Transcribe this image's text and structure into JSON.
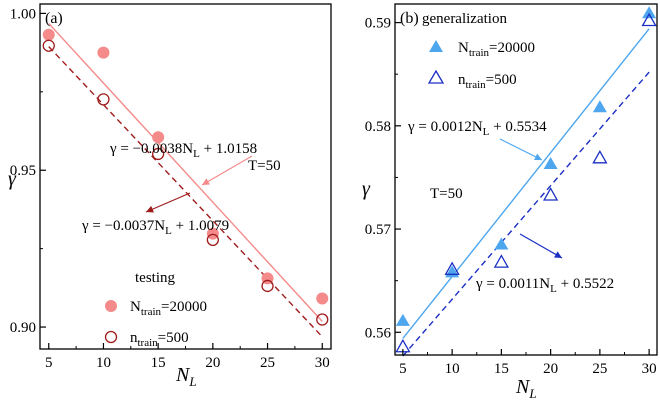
{
  "chart_data": [
    {
      "type": "scatter",
      "panel_label": "(a)",
      "xlabel": "N",
      "xlabel_sub": "L",
      "ylabel": "γ",
      "xlim": [
        4.2,
        30.8
      ],
      "ylim": [
        0.893,
        1.003
      ],
      "xticks": [
        "5",
        "10",
        "15",
        "20",
        "25",
        "30"
      ],
      "yticks": [
        "0.90",
        "0.95",
        "1.00"
      ],
      "grid": false,
      "legend_position": "bottom-left",
      "legend_title": "testing",
      "annotation_T": "T=50",
      "series": [
        {
          "name": "N",
          "name_sub": "train",
          "name_tail": "=20000",
          "marker": "filled-circle",
          "color": "#f58a8a",
          "x": [
            5,
            10,
            15,
            20,
            25,
            30
          ],
          "y": [
            0.9932,
            0.9875,
            0.9605,
            0.9298,
            0.9155,
            0.9091
          ],
          "fit": {
            "slope": -0.0038,
            "intercept": 1.0158,
            "style": "solid",
            "color": "#f58a8a",
            "label": "γ = −0.0038N",
            "label_sub": "L",
            "label_tail": " + 1.0158"
          }
        },
        {
          "name": "n",
          "name_sub": "train",
          "name_tail": "=500",
          "marker": "open-circle",
          "color": "#a01c1c",
          "x": [
            5,
            10,
            15,
            20,
            25,
            30
          ],
          "y": [
            0.9897,
            0.9726,
            0.9552,
            0.9278,
            0.9131,
            0.9024
          ],
          "fit": {
            "slope": -0.0037,
            "intercept": 1.0079,
            "style": "dashed",
            "color": "#a01c1c",
            "label": "γ = −0.0037N",
            "label_sub": "L",
            "label_tail": " + 1.0079"
          }
        }
      ]
    },
    {
      "type": "scatter",
      "panel_label": "(b)",
      "xlabel": "N",
      "xlabel_sub": "L",
      "ylabel": "γ",
      "xlim": [
        4.2,
        30.8
      ],
      "ylim": [
        0.5578,
        0.5918
      ],
      "xticks": [
        "5",
        "10",
        "15",
        "20",
        "25",
        "30"
      ],
      "yticks": [
        "0.56",
        "0.57",
        "0.58",
        "0.59"
      ],
      "grid": false,
      "legend_position": "top-left",
      "legend_title": "generalization",
      "annotation_T": "T=50",
      "series": [
        {
          "name": "N",
          "name_sub": "train",
          "name_tail": "=20000",
          "marker": "filled-triangle",
          "color": "#4da6ee",
          "x": [
            5,
            10,
            15,
            20,
            25,
            30
          ],
          "y": [
            0.5611,
            0.5658,
            0.5685,
            0.5763,
            0.5818,
            0.5909
          ],
          "fit": {
            "slope": 0.0012,
            "intercept": 0.5534,
            "style": "solid",
            "color": "#4da6ee",
            "label": "γ = 0.0012N",
            "label_sub": "L",
            "label_tail": " + 0.5534"
          }
        },
        {
          "name": "n",
          "name_sub": "train",
          "name_tail": "=500",
          "marker": "open-triangle",
          "color": "#1a2fc4",
          "x": [
            5,
            10,
            15,
            20,
            25,
            30
          ],
          "y": [
            0.5586,
            0.5661,
            0.5668,
            0.5733,
            0.5769,
            0.5902
          ],
          "fit": {
            "slope": 0.0011,
            "intercept": 0.5522,
            "style": "dashed",
            "color": "#1a2fc4",
            "label": "γ = 0.0011N",
            "label_sub": "L",
            "label_tail": " + 0.5522"
          }
        }
      ]
    }
  ]
}
